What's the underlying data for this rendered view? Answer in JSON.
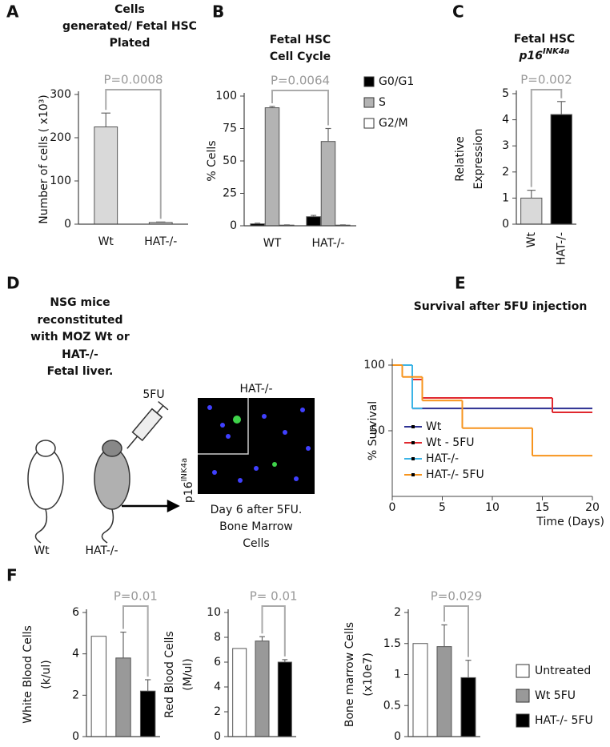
{
  "panel_labels": [
    "A",
    "B",
    "C",
    "D",
    "E",
    "F"
  ],
  "chart_data": [
    {
      "type": "bar",
      "title_lines": [
        "Cells",
        "generated/ Fetal HSC",
        "Plated"
      ],
      "y_label_lines": [
        "Number of cells ( x10³)"
      ],
      "categories": [
        "Wt",
        "HAT-/-"
      ],
      "values": [
        225,
        4
      ],
      "errors": [
        32,
        1
      ],
      "colors": [
        "#d9d9d9",
        "#d9d9d9"
      ],
      "ylim": [
        0,
        300
      ],
      "yticks": [
        0,
        100,
        200,
        300
      ],
      "annotation": "P=0.0008"
    },
    {
      "type": "bar",
      "title_lines": [
        "Fetal HSC",
        "Cell Cycle"
      ],
      "y_label_lines": [
        "% Cells"
      ],
      "categories": [
        "WT",
        "HAT-/-"
      ],
      "series": [
        {
          "name": "G0/G1",
          "color": "#000000",
          "values": [
            1.5,
            7
          ],
          "errors": [
            0.5,
            1
          ]
        },
        {
          "name": "S",
          "color": "#b3b3b3",
          "values": [
            91,
            65
          ],
          "errors": [
            1,
            10
          ]
        },
        {
          "name": "G2/M",
          "color": "#ffffff",
          "values": [
            0.5,
            0.5
          ],
          "errors": [
            0.2,
            0.2
          ]
        }
      ],
      "ylim": [
        0,
        100
      ],
      "yticks": [
        0,
        25,
        50,
        75,
        100
      ],
      "annotation": "P=0.0064"
    },
    {
      "type": "bar",
      "title_lines": [
        "Fetal HSC",
        "p16"
      ],
      "title_superscript": "INK4a",
      "y_label_lines": [
        "Relative",
        "Expression"
      ],
      "categories": [
        "Wt",
        "HAT-/-"
      ],
      "values": [
        1,
        4.2
      ],
      "errors": [
        0.3,
        0.5
      ],
      "colors": [
        "#d9d9d9",
        "#000000"
      ],
      "ylim": [
        0,
        5
      ],
      "yticks": [
        0,
        1,
        2,
        3,
        4,
        5
      ],
      "annotation": "P=0.002"
    },
    {
      "type": "line",
      "step": true,
      "title": "Survival after 5FU injection",
      "y_label": "% Survival",
      "x_label": "Time (Days)",
      "xlim": [
        0,
        20
      ],
      "xticks": [
        0,
        5,
        10,
        15,
        20
      ],
      "ylim": [
        0,
        100
      ],
      "yticks": [
        50,
        100
      ],
      "series": [
        {
          "name": "Wt",
          "color": "#2e3192",
          "x": [
            0,
            2,
            20
          ],
          "values": [
            100,
            67,
            67
          ]
        },
        {
          "name": "Wt - 5FU",
          "color": "#e0282e",
          "x": [
            0,
            2,
            3,
            16,
            20
          ],
          "values": [
            100,
            89,
            75,
            64,
            64
          ]
        },
        {
          "name": "HAT-/-",
          "color": "#3cb4e6",
          "x": [
            0,
            2,
            3
          ],
          "values": [
            100,
            67,
            67
          ]
        },
        {
          "name": "HAT-/- 5FU",
          "color": "#f7941d",
          "x": [
            0,
            1,
            3,
            7,
            14,
            20
          ],
          "values": [
            100,
            91,
            73,
            52,
            31,
            31
          ]
        }
      ]
    },
    {
      "type": "bar",
      "y_label_lines": [
        "White Blood Cells",
        "(k/ul)"
      ],
      "categories": [
        null,
        null,
        null
      ],
      "values": [
        4.85,
        3.8,
        2.2
      ],
      "errors": [
        null,
        1.25,
        0.55
      ],
      "colors": [
        "#ffffff",
        "#999999",
        "#000000"
      ],
      "ylim": [
        0,
        6
      ],
      "yticks": [
        0,
        2,
        4,
        6
      ],
      "annotation": "P=0.01"
    },
    {
      "type": "bar",
      "y_label_lines": [
        "Red Blood Cells",
        "(M/ul)"
      ],
      "categories": [
        null,
        null,
        null
      ],
      "values": [
        7.1,
        7.7,
        6.0
      ],
      "errors": [
        null,
        0.35,
        0.2
      ],
      "colors": [
        "#ffffff",
        "#999999",
        "#000000"
      ],
      "ylim": [
        0,
        10
      ],
      "yticks": [
        0,
        2,
        4,
        6,
        8,
        10
      ],
      "annotation": "P= 0.01"
    },
    {
      "type": "bar",
      "y_label_lines": [
        "Bone marrow Cells",
        "(x10e7)"
      ],
      "categories": [
        null,
        null,
        null
      ],
      "values": [
        1.5,
        1.45,
        0.95
      ],
      "errors": [
        null,
        0.35,
        0.28
      ],
      "colors": [
        "#ffffff",
        "#999999",
        "#000000"
      ],
      "ylim": [
        0,
        2
      ],
      "yticks": [
        0,
        0.5,
        1,
        1.5,
        2
      ],
      "annotation": "P=0.029"
    }
  ],
  "legend_f": [
    {
      "name": "Untreated",
      "color": "#ffffff"
    },
    {
      "name": "Wt 5FU",
      "color": "#999999"
    },
    {
      "name": "HAT-/- 5FU",
      "color": "#000000"
    }
  ],
  "panel_d": {
    "title_lines": [
      "NSG mice",
      "reconstituted",
      "with  MOZ Wt or",
      "HAT-/-",
      "Fetal liver."
    ],
    "drug": "5FU",
    "mouse_labels": [
      "Wt",
      "HAT-/-"
    ],
    "image_title": "HAT-/-",
    "image_y_label": "p16",
    "image_y_superscript": "INK4a",
    "caption_lines": [
      "Day 6 after 5FU.",
      "Bone Marrow",
      "Cells"
    ]
  }
}
